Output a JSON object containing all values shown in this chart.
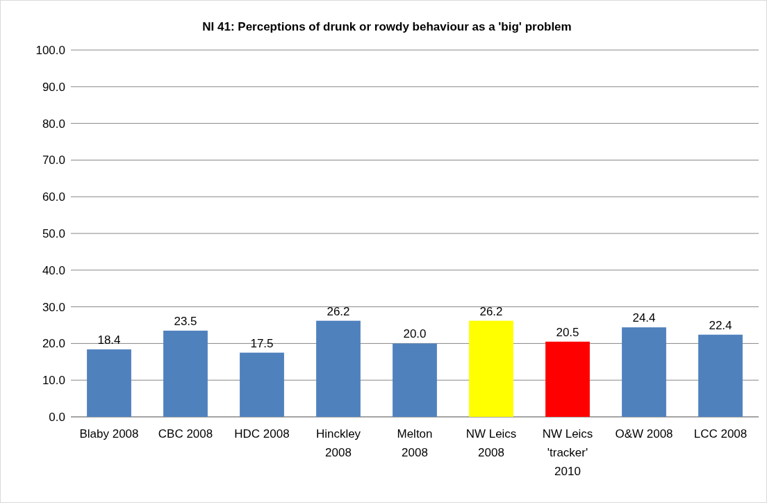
{
  "chart_data": {
    "type": "bar",
    "title": "NI 41: Perceptions of drunk or rowdy behaviour as a 'big' problem",
    "categories": [
      "Blaby 2008",
      "CBC 2008",
      "HDC 2008",
      "Hinckley 2008",
      "Melton 2008",
      "NW Leics 2008",
      "NW Leics 'tracker' 2010",
      "O&W 2008",
      "LCC 2008"
    ],
    "values": [
      18.4,
      23.5,
      17.5,
      26.2,
      20.0,
      26.2,
      20.5,
      24.4,
      22.4
    ],
    "value_labels": [
      "18.4",
      "23.5",
      "17.5",
      "26.2",
      "20.0",
      "26.2",
      "20.5",
      "24.4",
      "22.4"
    ],
    "colors": [
      "#4f81bd",
      "#4f81bd",
      "#4f81bd",
      "#4f81bd",
      "#4f81bd",
      "#ffff00",
      "#ff0000",
      "#4f81bd",
      "#4f81bd"
    ],
    "ylim": [
      0,
      100
    ],
    "yticks": [
      {
        "value": 0,
        "label": "0.0"
      },
      {
        "value": 10,
        "label": "10.0"
      },
      {
        "value": 20,
        "label": "20.0"
      },
      {
        "value": 30,
        "label": "30.0"
      },
      {
        "value": 40,
        "label": "40.0"
      },
      {
        "value": 50,
        "label": "50.0"
      },
      {
        "value": 60,
        "label": "60.0"
      },
      {
        "value": 70,
        "label": "70.0"
      },
      {
        "value": 80,
        "label": "80.0"
      },
      {
        "value": 90,
        "label": "90.0"
      },
      {
        "value": 100,
        "label": "100.0"
      }
    ],
    "grid": "y"
  }
}
